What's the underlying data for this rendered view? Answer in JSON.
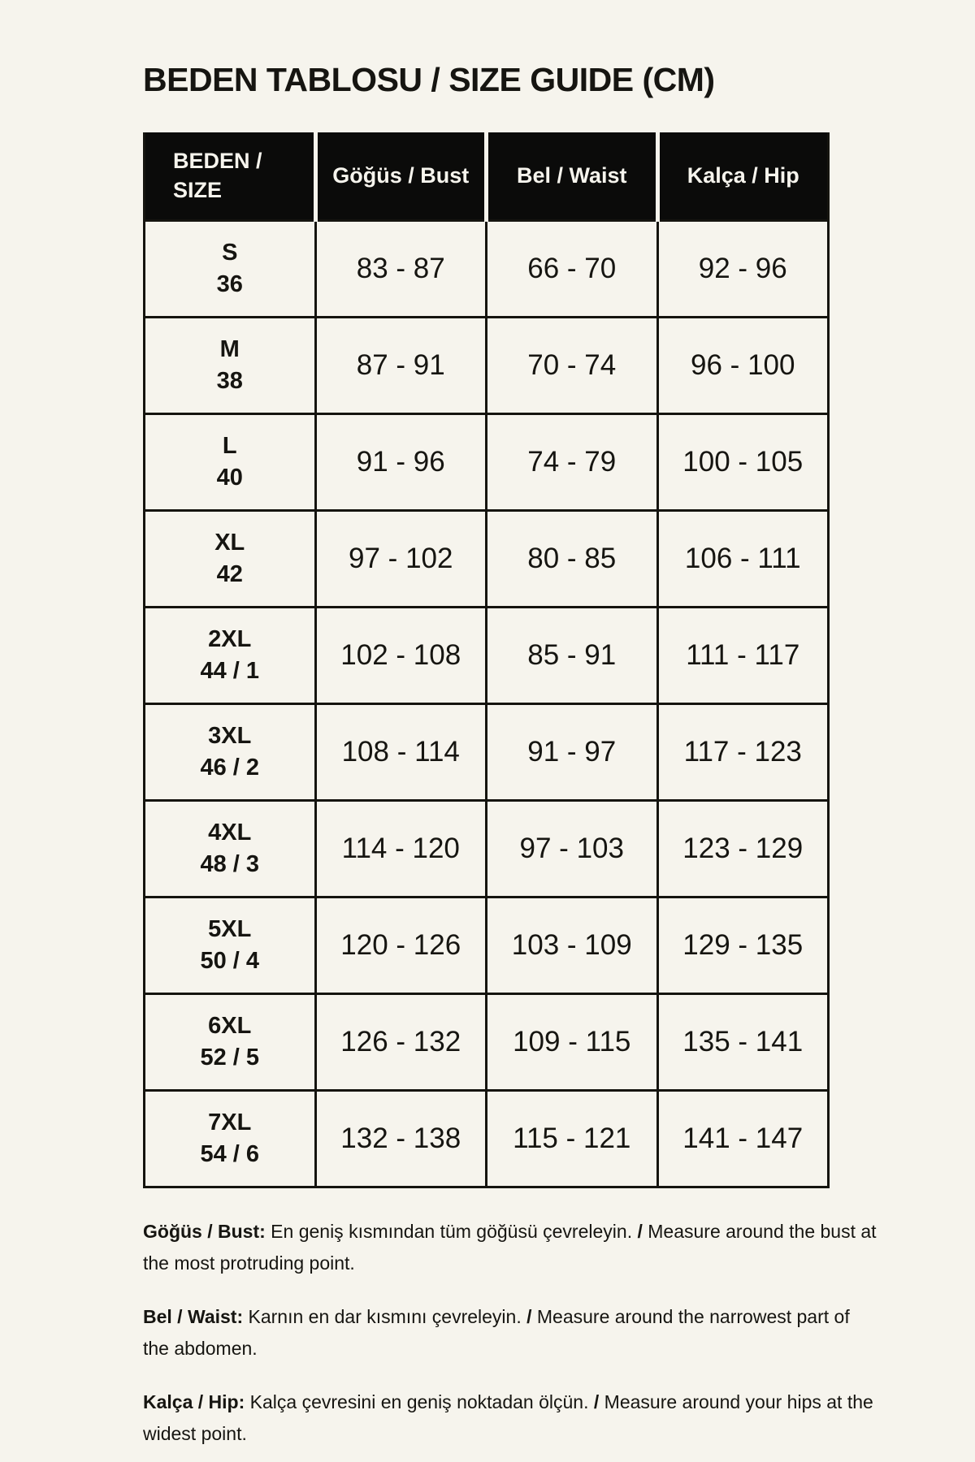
{
  "colors": {
    "background": "#F6F4ED",
    "header_bg": "#0B0B0A",
    "header_text": "#F6F4ED",
    "border": "#15140F",
    "text": "#161511"
  },
  "page": {
    "title": "BEDEN TABLOSU / SIZE GUIDE (CM)"
  },
  "table": {
    "headers": [
      "BEDEN /\nSIZE",
      "Göğüs / Bust",
      "Bel / Waist",
      "Kalça / Hip"
    ],
    "rows": [
      {
        "size": "S\n36",
        "bust": "83 - 87",
        "waist": "66 - 70",
        "hip": "92 - 96"
      },
      {
        "size": "M\n38",
        "bust": "87 - 91",
        "waist": "70 - 74",
        "hip": "96 - 100"
      },
      {
        "size": "L\n40",
        "bust": "91 - 96",
        "waist": "74 - 79",
        "hip": "100 - 105"
      },
      {
        "size": "XL\n42",
        "bust": "97 - 102",
        "waist": "80 - 85",
        "hip": "106 - 111"
      },
      {
        "size": "2XL\n44 / 1",
        "bust": "102 - 108",
        "waist": "85 - 91",
        "hip": "111 - 117"
      },
      {
        "size": "3XL\n46 / 2",
        "bust": "108 - 114",
        "waist": "91 - 97",
        "hip": "117 - 123"
      },
      {
        "size": "4XL\n48 / 3",
        "bust": "114 - 120",
        "waist": "97 - 103",
        "hip": "123 - 129"
      },
      {
        "size": "5XL\n50 / 4",
        "bust": "120 - 126",
        "waist": "103 - 109",
        "hip": "129 - 135"
      },
      {
        "size": "6XL\n52 / 5",
        "bust": "126 - 132",
        "waist": "109 - 115",
        "hip": "135 - 141"
      },
      {
        "size": "7XL\n54 / 6",
        "bust": "132 - 138",
        "waist": "115 - 121",
        "hip": "141 - 147"
      }
    ]
  },
  "notes": [
    {
      "label": "Göğüs / Bust:",
      "tr": "En geniş kısmından tüm göğüsü çevreleyin.",
      "separator": "/",
      "en": "Measure around the bust at the most protruding point."
    },
    {
      "label": "Bel / Waist:",
      "tr": "Karnın en dar kısmını çevreleyin.",
      "separator": "/",
      "en": "Measure around the narrowest part of the abdomen."
    },
    {
      "label": "Kalça / Hip:",
      "tr": "Kalça çevresini en geniş noktadan ölçün.",
      "separator": "/",
      "en": "Measure around your hips at the widest point."
    }
  ]
}
